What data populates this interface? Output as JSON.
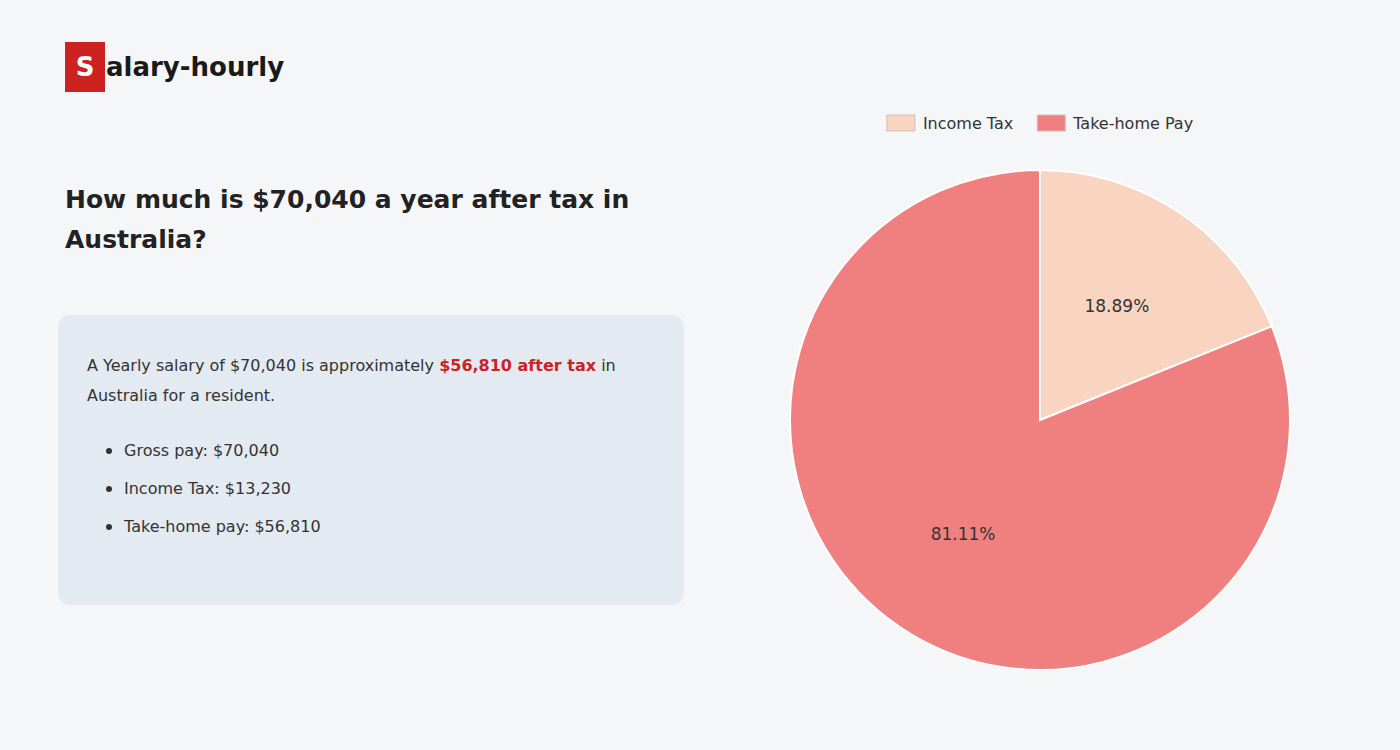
{
  "chart_data": {
    "type": "pie",
    "title": "How much is $70,040 a year after tax in Australia?",
    "annotations": [
      {
        "text": "S"
      },
      {
        "text": "alary-hourly"
      },
      {
        "text": "A Yearly salary of $70,040 is approximately "
      },
      {
        "text": "$56,810 after tax",
        "color": "#cc2222"
      },
      {
        "text": " in"
      },
      {
        "text": "Australia for a resident."
      },
      {
        "text": "Gross pay: $70,040"
      },
      {
        "text": "Income Tax: $13,230"
      },
      {
        "text": "Take-home pay: $56,810"
      }
    ],
    "categories": [
      "Income Tax",
      "Take-home Pay"
    ],
    "values": [
      18.89,
      81.11
    ],
    "value_labels": [
      "18.89%",
      "81.11%"
    ],
    "colors": [
      "#f9d4c0",
      "#f08080"
    ],
    "data_labels": true,
    "legend": "top"
  }
}
